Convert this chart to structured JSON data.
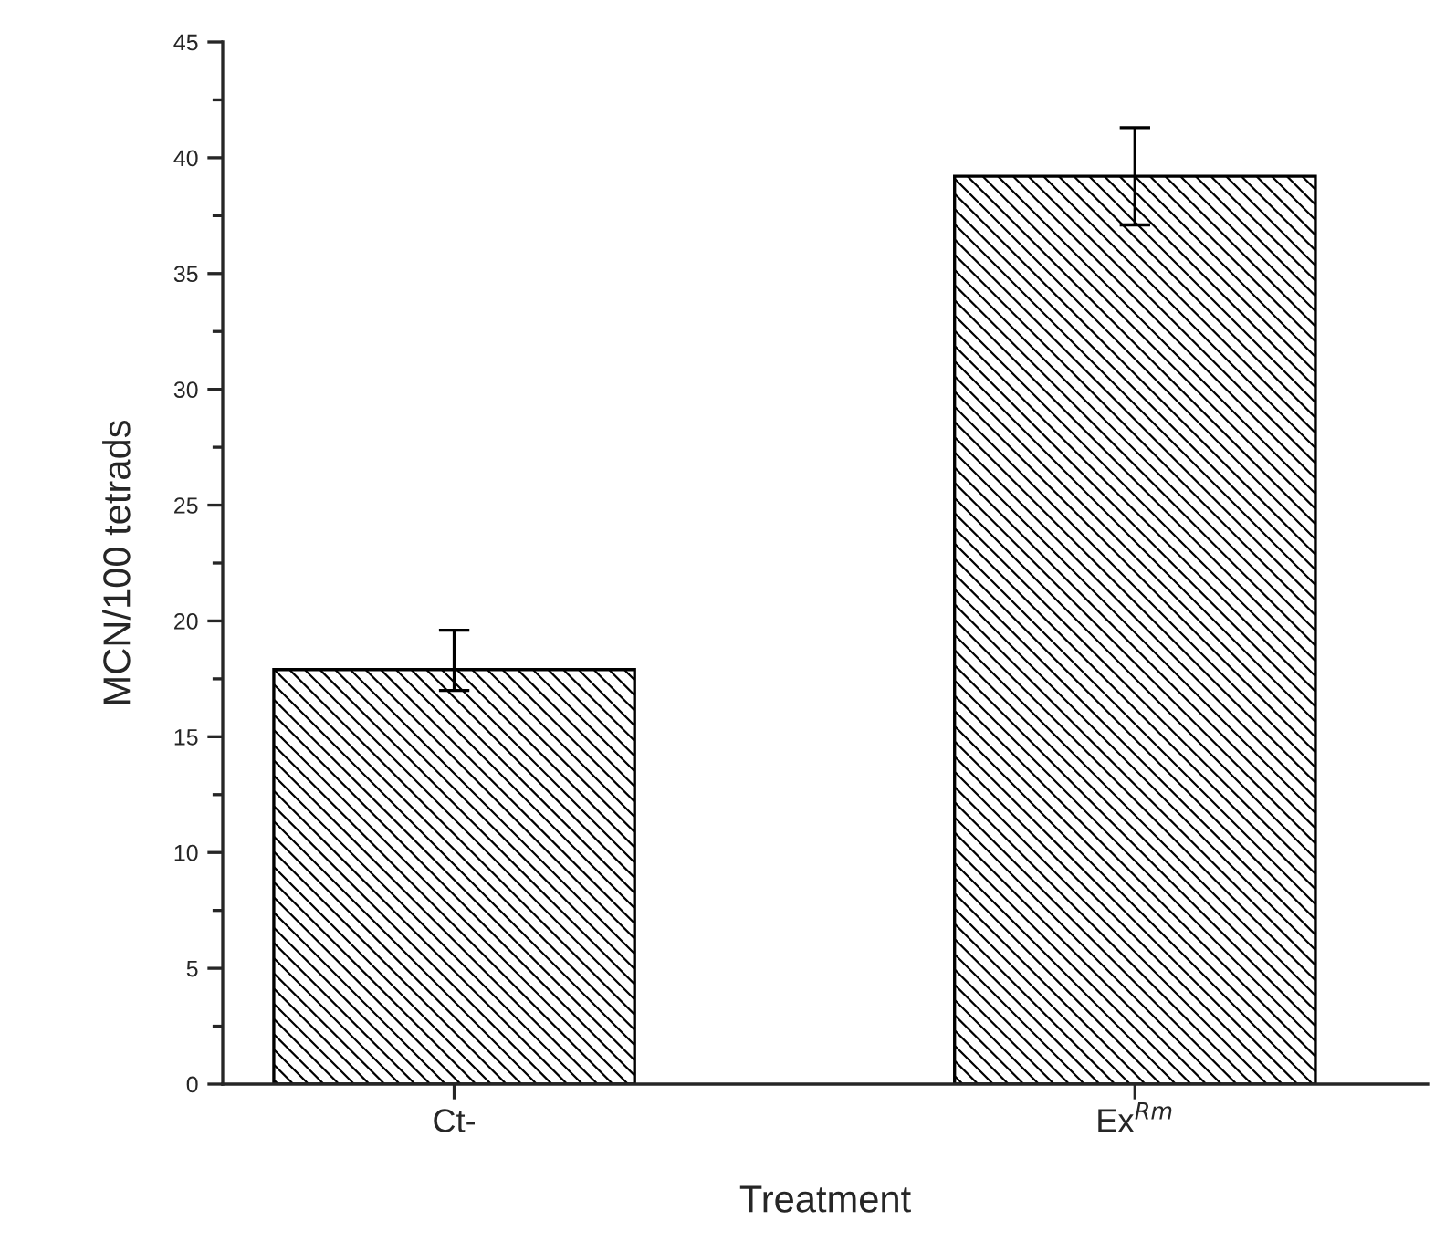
{
  "chart_data": {
    "type": "bar",
    "xlabel": "Treatment",
    "ylabel": "MCN/100 tetrads",
    "categories": [
      "Ct-",
      "Ex$^{Rm}$"
    ],
    "values": [
      17.9,
      39.2
    ],
    "errors": [
      [
        17.0,
        19.6
      ],
      2.1
    ],
    "color": "#000000",
    "ylim": [
      0,
      45
    ],
    "yticks": [
      0,
      5,
      10,
      15,
      20,
      25,
      30,
      35,
      40,
      45
    ],
    "grid": false,
    "legend": false
  }
}
